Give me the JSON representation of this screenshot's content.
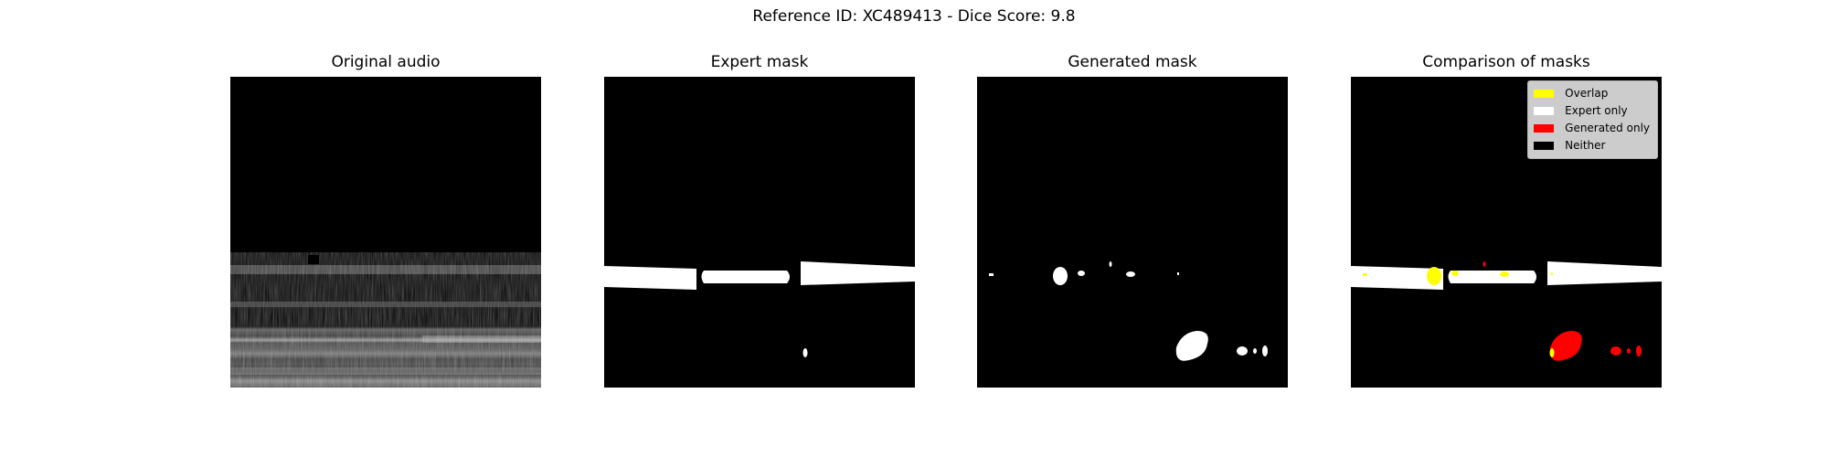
{
  "figure": {
    "suptitle": "Reference ID: XC489413 - Dice Score: 9.8"
  },
  "panels": [
    {
      "title": "Original audio"
    },
    {
      "title": "Expert mask"
    },
    {
      "title": "Generated mask"
    },
    {
      "title": "Comparison of masks"
    }
  ],
  "legend": {
    "items": [
      {
        "label": "Overlap",
        "color": "#ffff00"
      },
      {
        "label": "Expert only",
        "color": "#ffffff"
      },
      {
        "label": "Generated only",
        "color": "#ff0000"
      },
      {
        "label": "Neither",
        "color": "#000000"
      }
    ]
  },
  "colors": {
    "background": "#000000",
    "expert": "#ffffff",
    "generated": "#ffffff",
    "overlap": "#ffff00",
    "generated_only": "#ff0000"
  }
}
